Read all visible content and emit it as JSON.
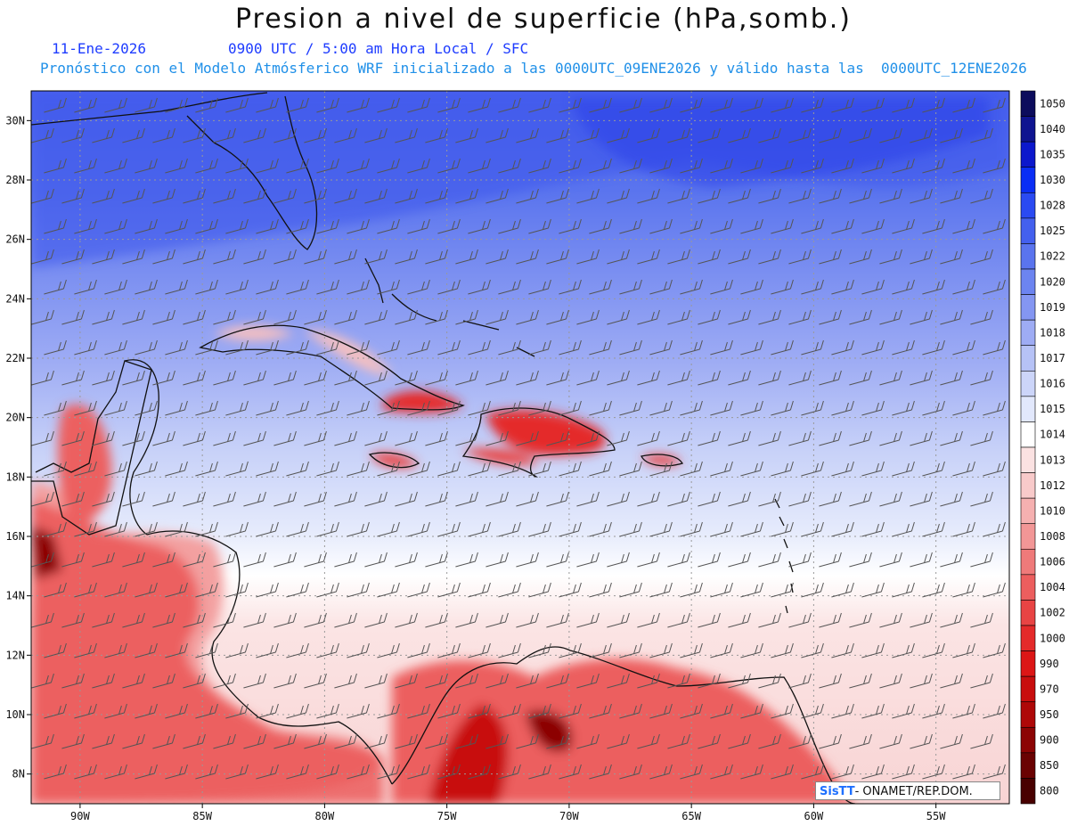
{
  "title": "Presion a nivel de superficie (hPa,somb.)",
  "subtitle_date": "11-Ene-2026",
  "subtitle_time": "0900 UTC / 5:00 am Hora Local / SFC",
  "subtitle_model": "Pronóstico con el Modelo Atmósferico WRF inicializado a las 0000UTC_09ENE2026 y válido hasta las  0000UTC_12ENE2026",
  "footer": {
    "brand": "SisTT",
    "separator": "- ",
    "org": "ONAMET/REP.DOM."
  },
  "map": {
    "lon_range": [
      -92,
      -52
    ],
    "lat_range": [
      7,
      31
    ],
    "lon_ticks": [
      {
        "value": -90,
        "label": "90W"
      },
      {
        "value": -85,
        "label": "85W"
      },
      {
        "value": -80,
        "label": "80W"
      },
      {
        "value": -75,
        "label": "75W"
      },
      {
        "value": -70,
        "label": "70W"
      },
      {
        "value": -65,
        "label": "65W"
      },
      {
        "value": -60,
        "label": "60W"
      },
      {
        "value": -55,
        "label": "55W"
      }
    ],
    "lat_ticks": [
      {
        "value": 8,
        "label": "8N"
      },
      {
        "value": 10,
        "label": "10N"
      },
      {
        "value": 12,
        "label": "12N"
      },
      {
        "value": 14,
        "label": "14N"
      },
      {
        "value": 16,
        "label": "16N"
      },
      {
        "value": 18,
        "label": "18N"
      },
      {
        "value": 20,
        "label": "20N"
      },
      {
        "value": 22,
        "label": "22N"
      },
      {
        "value": 24,
        "label": "24N"
      },
      {
        "value": 26,
        "label": "26N"
      },
      {
        "value": 28,
        "label": "28N"
      },
      {
        "value": 30,
        "label": "30N"
      }
    ],
    "wind": "NE trade-wind barbs over the Caribbean"
  },
  "colorbar": {
    "levels": [
      "1050",
      "1040",
      "1035",
      "1030",
      "1028",
      "1025",
      "1022",
      "1020",
      "1019",
      "1018",
      "1017",
      "1016",
      "1015",
      "1014",
      "1013",
      "1012",
      "1010",
      "1008",
      "1006",
      "1004",
      "1002",
      "1000",
      "990",
      "970",
      "950",
      "900",
      "850",
      "800"
    ],
    "colors": [
      "#0c0c5c",
      "#0f1490",
      "#0c18cc",
      "#0a2ef5",
      "#2a4af2",
      "#4460ee",
      "#5a74ee",
      "#6c84f0",
      "#8496f2",
      "#9eacf4",
      "#b6c2f6",
      "#ccd5f9",
      "#e2e8fc",
      "#ffffff",
      "#fbe2e2",
      "#f8caca",
      "#f5b0b0",
      "#f29696",
      "#ef7a7a",
      "#ec5e5e",
      "#e84444",
      "#e42a2a",
      "#dc1616",
      "#c80e0e",
      "#ae0808",
      "#8c0404",
      "#6a0202",
      "#480000"
    ]
  }
}
